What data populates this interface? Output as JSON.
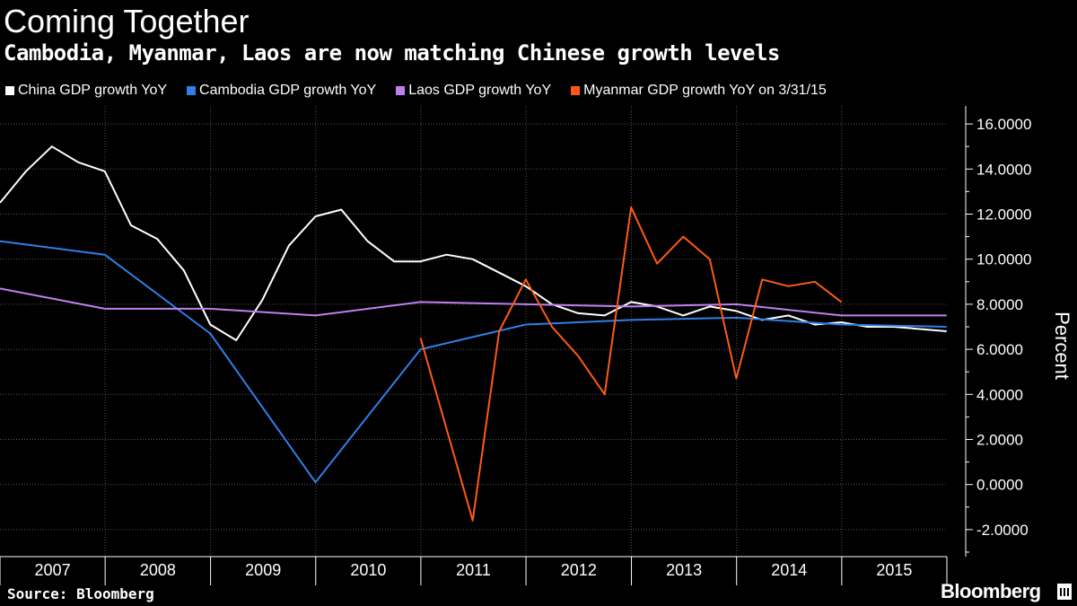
{
  "header": {
    "title": "Coming Together",
    "subtitle": "Cambodia, Myanmar, Laos are now matching Chinese growth levels"
  },
  "footer": {
    "source": "Source: Bloomberg",
    "brand": "Bloomberg"
  },
  "chart_data": {
    "type": "line",
    "title": "Coming Together",
    "subtitle": "Cambodia, Myanmar, Laos are now matching Chinese growth levels",
    "xlabel": "",
    "ylabel": "Percent",
    "xlim": [
      "2007-01-01",
      "2016-01-01"
    ],
    "ylim": [
      -3.2,
      16.8
    ],
    "yticks": [
      -2,
      0,
      2,
      4,
      6,
      8,
      10,
      12,
      14,
      16
    ],
    "ytick_labels": [
      "-2.0000",
      "0.0000",
      "2.0000",
      "4.0000",
      "6.0000",
      "8.0000",
      "10.0000",
      "12.0000",
      "14.0000",
      "16.0000"
    ],
    "xticks": [
      "2007",
      "2008",
      "2009",
      "2010",
      "2011",
      "2012",
      "2013",
      "2014",
      "2015"
    ],
    "y_axis_side": "right",
    "grid": true,
    "legend": "top-left",
    "series": [
      {
        "name": "China GDP growth YoY",
        "color": "#ffffff",
        "points": [
          [
            "2007-01-01",
            12.5
          ],
          [
            "2007-04-01",
            13.9
          ],
          [
            "2007-06-30",
            15.0
          ],
          [
            "2007-09-30",
            14.3
          ],
          [
            "2007-12-31",
            13.9
          ],
          [
            "2008-03-31",
            11.5
          ],
          [
            "2008-06-30",
            10.9
          ],
          [
            "2008-09-30",
            9.5
          ],
          [
            "2008-12-31",
            7.1
          ],
          [
            "2009-03-31",
            6.4
          ],
          [
            "2009-06-30",
            8.2
          ],
          [
            "2009-09-30",
            10.6
          ],
          [
            "2009-12-31",
            11.9
          ],
          [
            "2010-03-31",
            12.2
          ],
          [
            "2010-06-30",
            10.8
          ],
          [
            "2010-09-30",
            9.9
          ],
          [
            "2010-12-31",
            9.9
          ],
          [
            "2011-03-31",
            10.2
          ],
          [
            "2011-06-30",
            10.0
          ],
          [
            "2011-09-30",
            9.4
          ],
          [
            "2011-12-31",
            8.8
          ],
          [
            "2012-03-31",
            8.0
          ],
          [
            "2012-06-30",
            7.6
          ],
          [
            "2012-09-30",
            7.5
          ],
          [
            "2012-12-31",
            8.1
          ],
          [
            "2013-03-31",
            7.9
          ],
          [
            "2013-06-30",
            7.5
          ],
          [
            "2013-09-30",
            7.9
          ],
          [
            "2013-12-31",
            7.7
          ],
          [
            "2014-03-31",
            7.3
          ],
          [
            "2014-06-30",
            7.5
          ],
          [
            "2014-09-30",
            7.1
          ],
          [
            "2014-12-31",
            7.2
          ],
          [
            "2015-03-31",
            7.0
          ],
          [
            "2015-06-30",
            7.0
          ],
          [
            "2015-09-30",
            6.9
          ],
          [
            "2015-12-31",
            6.8
          ]
        ]
      },
      {
        "name": "Cambodia GDP growth YoY",
        "color": "#2f7fe6",
        "points": [
          [
            "2007-01-01",
            10.8
          ],
          [
            "2007-12-31",
            10.2
          ],
          [
            "2008-12-31",
            6.7
          ],
          [
            "2009-12-31",
            0.1
          ],
          [
            "2010-12-31",
            6.0
          ],
          [
            "2011-12-31",
            7.1
          ],
          [
            "2012-12-31",
            7.3
          ],
          [
            "2013-12-31",
            7.4
          ],
          [
            "2014-12-31",
            7.1
          ],
          [
            "2015-12-31",
            7.0
          ]
        ]
      },
      {
        "name": "Laos GDP growth YoY",
        "color": "#bf7ff0",
        "points": [
          [
            "2007-01-01",
            8.7
          ],
          [
            "2007-12-31",
            7.8
          ],
          [
            "2008-12-31",
            7.8
          ],
          [
            "2009-12-31",
            7.5
          ],
          [
            "2010-12-31",
            8.1
          ],
          [
            "2011-12-31",
            8.0
          ],
          [
            "2012-12-31",
            7.9
          ],
          [
            "2013-12-31",
            8.0
          ],
          [
            "2014-12-31",
            7.5
          ],
          [
            "2015-12-31",
            7.5
          ]
        ]
      },
      {
        "name": "Myanmar GDP growth YoY on 3/31/15",
        "color": "#ff5a14",
        "points": [
          [
            "2010-12-31",
            6.5
          ],
          [
            "2011-06-30",
            -1.6
          ],
          [
            "2011-09-30",
            6.8
          ],
          [
            "2011-12-31",
            9.1
          ],
          [
            "2012-03-31",
            7.0
          ],
          [
            "2012-06-30",
            5.7
          ],
          [
            "2012-09-30",
            4.0
          ],
          [
            "2012-12-31",
            12.3
          ],
          [
            "2013-03-31",
            9.8
          ],
          [
            "2013-06-30",
            11.0
          ],
          [
            "2013-09-30",
            10.0
          ],
          [
            "2013-12-31",
            4.7
          ],
          [
            "2014-03-31",
            9.1
          ],
          [
            "2014-06-30",
            8.8
          ],
          [
            "2014-09-30",
            9.0
          ],
          [
            "2014-12-31",
            8.1
          ]
        ]
      }
    ]
  }
}
